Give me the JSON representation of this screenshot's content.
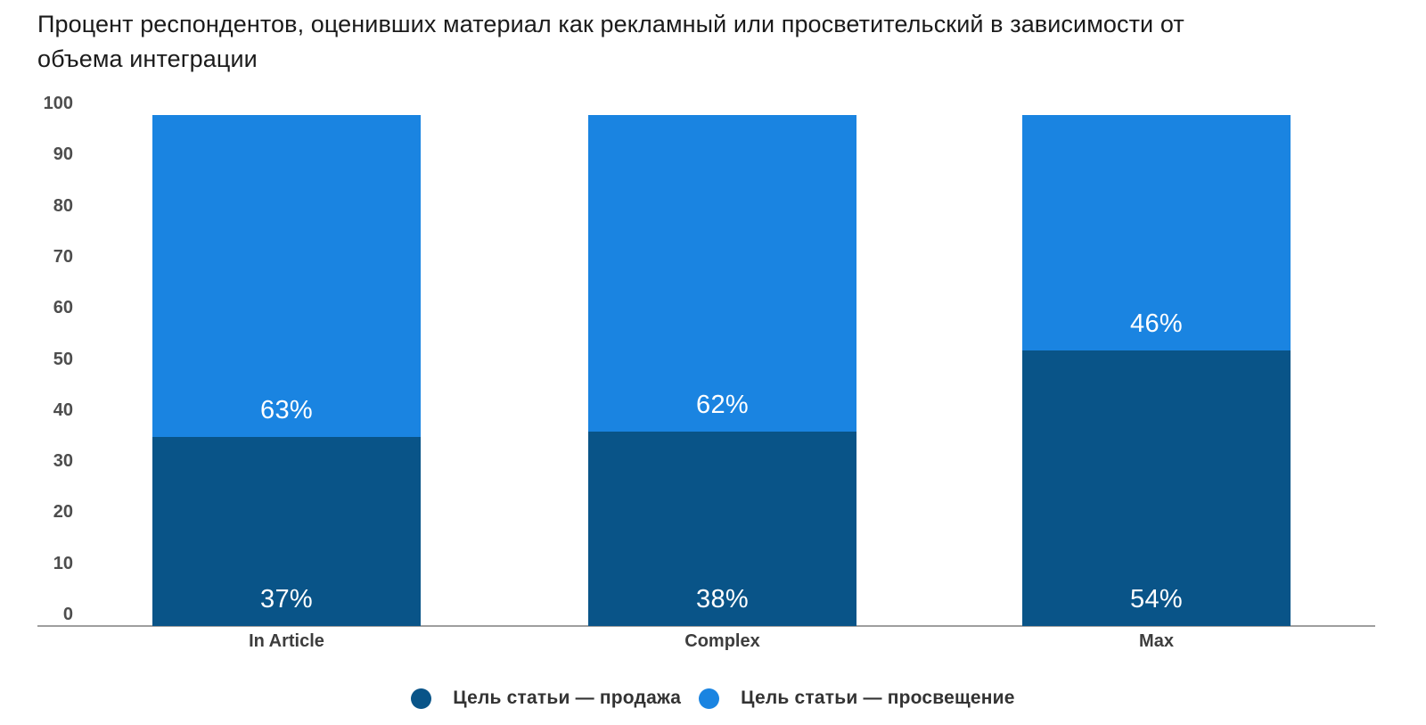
{
  "title": "Процент респондентов, оценивших материал как рекламный или просветительский в зависимости от\nобъема интеграции",
  "chart_data": {
    "type": "bar",
    "stacked": true,
    "title": "Процент респондентов, оценивших материал как рекламный или просветительский в зависимости от объема интеграции",
    "categories": [
      "In Article",
      "Complex",
      "Max"
    ],
    "series": [
      {
        "name": "Цель статьи — продажа",
        "color": "#095488",
        "values": [
          37,
          38,
          54
        ],
        "value_labels": [
          "37%",
          "38%",
          "54%"
        ]
      },
      {
        "name": "Цель статьи — просвещение",
        "color": "#1A84E1",
        "values": [
          63,
          62,
          46
        ],
        "value_labels": [
          "63%",
          "62%",
          "46%"
        ]
      }
    ],
    "xlabel": "",
    "ylabel": "",
    "ylim": [
      0,
      100
    ],
    "yticks": [
      0,
      10,
      20,
      30,
      40,
      50,
      60,
      70,
      80,
      90,
      100
    ],
    "grid": false,
    "legend_position": "bottom-center",
    "value_suffix": "%",
    "colors": {
      "background": "#ffffff",
      "title": "#1b1b1b",
      "tick_label": "#4d4d4d",
      "category_label": "#3d3d3d",
      "legend_label": "#333333",
      "value_label": "#ffffff",
      "axis_line": "#9e9e9e"
    }
  }
}
